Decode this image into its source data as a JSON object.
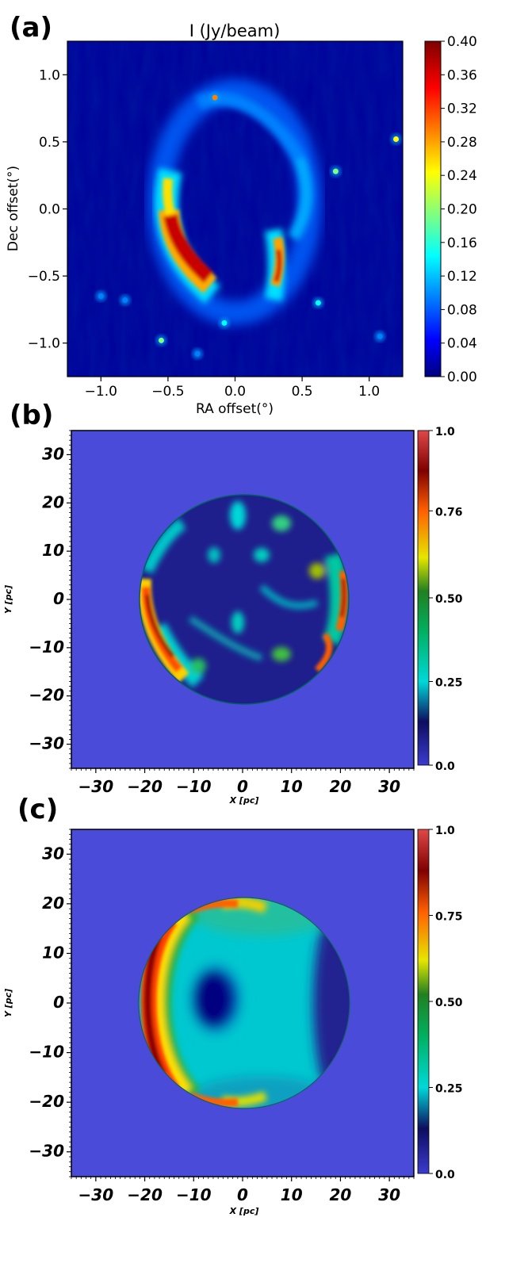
{
  "colors": {
    "jet": [
      "#00007f",
      "#0000ff",
      "#007fff",
      "#00ffff",
      "#7fff7f",
      "#ffff00",
      "#ff7f00",
      "#ff0000",
      "#7f0000"
    ],
    "panel_background_bc": "#4b4bd9",
    "panel_background_a": "#00009a"
  },
  "chart_data": [
    {
      "panel": "(a)",
      "type": "heatmap",
      "title": "I (Jy/beam)",
      "xlabel": "RA offset(°)",
      "ylabel": "Dec offset(°)",
      "xlim": [
        -1.25,
        1.25
      ],
      "ylim": [
        -1.25,
        1.25
      ],
      "xticks": [
        "−1.0",
        "−0.5",
        "0.0",
        "0.5",
        "1.0"
      ],
      "xtick_values": [
        -1.0,
        -0.5,
        0.0,
        0.5,
        1.0
      ],
      "yticks": [
        "1.0",
        "0.5",
        "0.0",
        "−0.5",
        "−1.0"
      ],
      "ytick_values": [
        1.0,
        0.5,
        0.0,
        -0.5,
        -1.0
      ],
      "colorbar": {
        "range": [
          0.0,
          0.4
        ],
        "ticks": [
          "0.40",
          "0.36",
          "0.32",
          "0.28",
          "0.24",
          "0.20",
          "0.16",
          "0.12",
          "0.08",
          "0.04",
          "0.00"
        ],
        "tick_values": [
          0.4,
          0.36,
          0.32,
          0.28,
          0.24,
          0.2,
          0.16,
          0.12,
          0.08,
          0.04,
          0.0
        ]
      },
      "features": {
        "shell": "bright elliptical shell of radius ~0.55° with strongest emission on the lower-left (up to 0.40) and lower-right limbs",
        "point_sources": [
          {
            "x": -0.15,
            "y": 0.83,
            "v": 0.3
          },
          {
            "x": 1.2,
            "y": 0.52,
            "v": 0.24
          },
          {
            "x": 0.75,
            "y": 0.28,
            "v": 0.22
          },
          {
            "x": -1.0,
            "y": -0.65,
            "v": 0.12
          },
          {
            "x": -0.82,
            "y": -0.68,
            "v": 0.1
          },
          {
            "x": 0.62,
            "y": -0.7,
            "v": 0.14
          },
          {
            "x": -0.08,
            "y": -0.85,
            "v": 0.14
          },
          {
            "x": -0.55,
            "y": -0.98,
            "v": 0.18
          },
          {
            "x": -0.28,
            "y": -1.08,
            "v": 0.12
          },
          {
            "x": 1.08,
            "y": -0.95,
            "v": 0.1
          }
        ]
      }
    },
    {
      "panel": "(b)",
      "type": "heatmap",
      "xlabel": "X [pc]",
      "ylabel": "Y [pc]",
      "xlim": [
        -35,
        35
      ],
      "ylim": [
        -35,
        35
      ],
      "xticks": [
        "−30",
        "−20",
        "−10",
        "0",
        "10",
        "20",
        "30"
      ],
      "xtick_values": [
        -30,
        -20,
        -10,
        0,
        10,
        20,
        30
      ],
      "yticks": [
        "30",
        "20",
        "10",
        "0",
        "−10",
        "−20",
        "−30"
      ],
      "ytick_values": [
        30,
        20,
        10,
        0,
        -10,
        -20,
        -30
      ],
      "colorbar": {
        "range": [
          0.0,
          1.0
        ],
        "ticks": [
          "1.0",
          "0.76",
          "0.50",
          "0.25",
          "0.0"
        ],
        "tick_values": [
          1.0,
          0.76,
          0.5,
          0.25,
          0.0
        ]
      },
      "features": {
        "sphere_radius_pc": 21,
        "description": "filamentary spherical emission, bright left and right limbs (~0.8-0.9), patchy interior"
      }
    },
    {
      "panel": "(c)",
      "type": "heatmap",
      "xlabel": "X [pc]",
      "ylabel": "Y [pc]",
      "xlim": [
        -35,
        35
      ],
      "ylim": [
        -35,
        35
      ],
      "xticks": [
        "−30",
        "−20",
        "−10",
        "0",
        "10",
        "20",
        "30"
      ],
      "xtick_values": [
        -30,
        -20,
        -10,
        0,
        10,
        20,
        30
      ],
      "yticks": [
        "30",
        "20",
        "10",
        "0",
        "−10",
        "−20",
        "−30"
      ],
      "ytick_values": [
        30,
        20,
        10,
        0,
        -10,
        -20,
        -30
      ],
      "colorbar": {
        "range": [
          0.0,
          1.0
        ],
        "ticks": [
          "1.0",
          "0.75",
          "0.50",
          "0.25",
          "0.0"
        ],
        "tick_values": [
          1.0,
          0.75,
          0.5,
          0.25,
          0.0
        ]
      },
      "features": {
        "sphere_radius_pc": 21,
        "description": "smooth crescent of bright emission (~0.9) on left limb, dark cavity near (-7, 0), cyan (~0.3) right half fading to dark at the right edge"
      }
    }
  ]
}
